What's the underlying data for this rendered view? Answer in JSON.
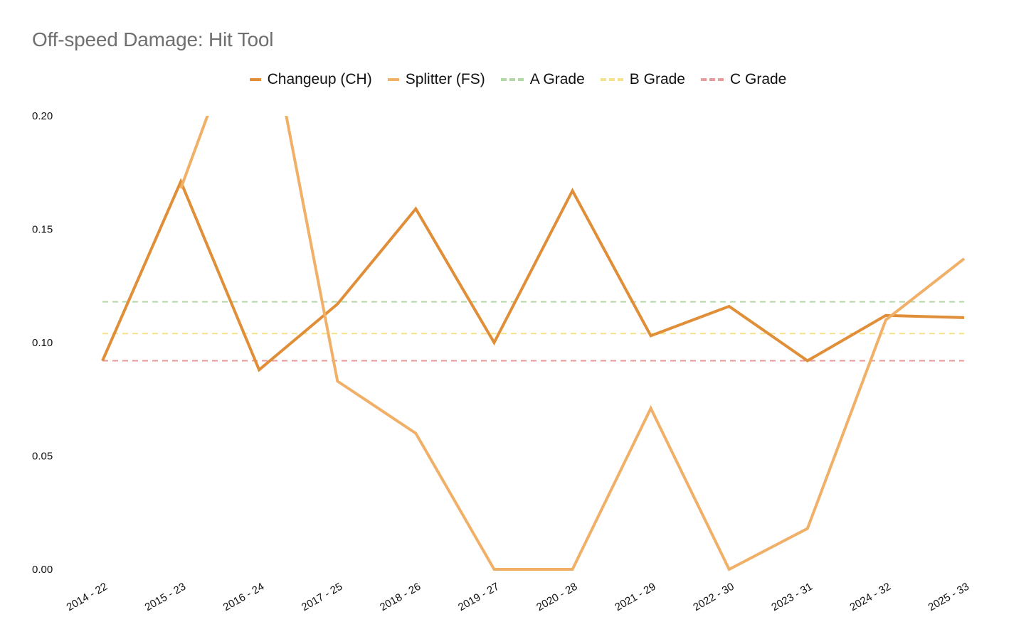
{
  "chart_data": {
    "type": "line",
    "title": "Off-speed Damage: Hit Tool",
    "xlabel": "",
    "ylabel": "",
    "categories": [
      "2014 - 22",
      "2015 - 23",
      "2016 - 24",
      "2017 - 25",
      "2018 - 26",
      "2019 - 27",
      "2020 - 28",
      "2021 - 29",
      "2022 - 30",
      "2023 - 31",
      "2024 - 32",
      "2025 - 33"
    ],
    "ylim": [
      0,
      0.2
    ],
    "yticks": [
      "0.00",
      "0.05",
      "0.10",
      "0.15",
      "0.20"
    ],
    "grid": false,
    "legend_position": "top-center",
    "series": [
      {
        "name": "Changeup (CH)",
        "color": "#e08e37",
        "values": [
          0.092,
          0.171,
          0.088,
          0.117,
          0.159,
          0.1,
          0.167,
          0.103,
          0.116,
          0.092,
          0.112,
          0.111
        ]
      },
      {
        "name": "Splitter (FS)",
        "color": "#f0b068",
        "values": [
          null,
          0.168,
          0.262,
          0.083,
          0.06,
          0.0,
          0.0,
          0.071,
          0.0,
          0.018,
          0.11,
          0.137
        ]
      }
    ],
    "reference_lines": [
      {
        "name": "A Grade",
        "color": "#b2d8a6",
        "value": 0.118
      },
      {
        "name": "B Grade",
        "color": "#f7e28c",
        "value": 0.104
      },
      {
        "name": "C Grade",
        "color": "#e89a9a",
        "value": 0.092
      }
    ]
  }
}
